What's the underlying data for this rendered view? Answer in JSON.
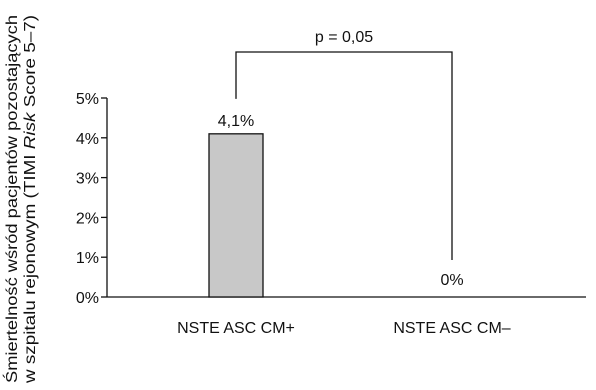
{
  "chart_data": {
    "type": "bar",
    "ylabel_line1": "Śmiertelność wśród pacjentów pozostających",
    "ylabel_line2_pre": "w szpitalu rejonowym (TIMI ",
    "ylabel_line2_italic": "Risk",
    "ylabel_line2_post": " Score 5–7)",
    "categories": [
      "NSTE ASC CM+",
      "NSTE ASC CM–"
    ],
    "values": [
      4.1,
      0
    ],
    "data_labels": [
      "4,1%",
      "0%"
    ],
    "y_ticks": [
      0,
      1,
      2,
      3,
      4,
      5
    ],
    "y_tick_labels": [
      "0%",
      "1%",
      "2%",
      "3%",
      "4%",
      "5%"
    ],
    "ylim": [
      0,
      5
    ],
    "bar_color": "#c8c8c8",
    "comparison": {
      "label": "p = 0,05",
      "between": [
        0,
        1
      ]
    },
    "grid": false
  }
}
